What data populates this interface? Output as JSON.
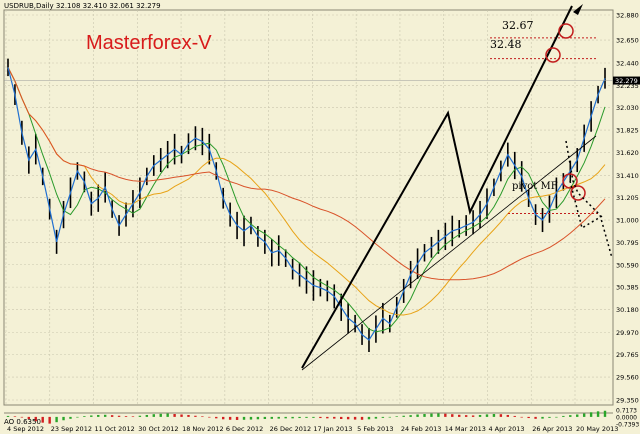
{
  "header": {
    "symbol_line": "USDRUB,Daily  32.108 32.410 32.061 32.279",
    "ao_line": "AO 0.6350"
  },
  "brand": "Masterforex-V",
  "annotations": {
    "target_high": "32.67",
    "target_low": "32.48",
    "pivot_label": "pivot MF"
  },
  "colors": {
    "background": "#f4f1d6",
    "grid": "#c9c6ae",
    "price_line": "#1f6fd1",
    "candles": "#000000",
    "ma_fast": "#2a9a2a",
    "ma_mid": "#e8a317",
    "ma_slow": "#d9532a",
    "brand": "#d81b1b",
    "target_line": "#c21d1d",
    "ao_up": "#2aa52a",
    "ao_down": "#d22020"
  },
  "chart_data": {
    "type": "line",
    "title": "USDRUB,Daily",
    "last_price": "32.279",
    "ylim": [
      29.35,
      32.88
    ],
    "y_ticks": [
      "32.880",
      "32.650",
      "32.440",
      "32.235",
      "32.030",
      "31.825",
      "31.620",
      "31.410",
      "31.205",
      "31.000",
      "30.795",
      "30.590",
      "30.385",
      "30.180",
      "29.970",
      "29.765",
      "29.560",
      "29.350"
    ],
    "x_ticks": [
      "4 Sep 2012",
      "23 Sep 2012",
      "11 Oct 2012",
      "30 Oct 2012",
      "18 Nov 2012",
      "6 Dec 2012",
      "26 Dec 2012",
      "17 Jan 2013",
      "5 Feb 2013",
      "24 Feb 2013",
      "14 Mar 2013",
      "4 Apr 2013",
      "26 Apr 2013",
      "20 May 2013"
    ],
    "ao_ticks": [
      "0.7173",
      "0.0000",
      "-0.7393"
    ],
    "ao_value": "0.6350",
    "price_series": [
      32.4,
      32.15,
      31.8,
      31.55,
      31.65,
      31.4,
      31.1,
      30.8,
      31.05,
      31.25,
      31.45,
      31.35,
      31.15,
      31.2,
      31.3,
      31.1,
      30.95,
      31.05,
      31.15,
      31.25,
      31.4,
      31.5,
      31.55,
      31.6,
      31.65,
      31.6,
      31.7,
      31.75,
      31.72,
      31.65,
      31.45,
      31.2,
      31.05,
      30.95,
      30.9,
      30.95,
      30.85,
      30.8,
      30.7,
      30.72,
      30.65,
      30.55,
      30.5,
      30.45,
      30.4,
      30.38,
      30.35,
      30.3,
      30.2,
      30.1,
      30.05,
      29.95,
      29.9,
      30.0,
      30.1,
      30.05,
      30.2,
      30.35,
      30.5,
      30.6,
      30.7,
      30.75,
      30.8,
      30.85,
      30.9,
      30.92,
      30.95,
      30.98,
      31.05,
      31.15,
      31.3,
      31.45,
      31.6,
      31.5,
      31.4,
      31.2,
      31.05,
      31.0,
      31.1,
      31.25,
      31.35,
      31.45,
      31.55,
      31.75,
      31.95,
      32.15,
      32.3
    ],
    "ao_values": [
      0.1,
      0.05,
      -0.05,
      -0.25,
      -0.45,
      -0.6,
      -0.7,
      -0.55,
      -0.35,
      -0.2,
      -0.05,
      0.08,
      0.15,
      0.2,
      0.22,
      0.18,
      0.12,
      0.08,
      0.05,
      0.12,
      0.2,
      0.28,
      0.32,
      0.35,
      0.3,
      0.25,
      0.2,
      0.12,
      0.05,
      -0.05,
      -0.15,
      -0.25,
      -0.3,
      -0.32,
      -0.3,
      -0.28,
      -0.25,
      -0.22,
      -0.2,
      -0.18,
      -0.15,
      -0.15,
      -0.12,
      -0.1,
      -0.1,
      -0.12,
      -0.15,
      -0.18,
      -0.22,
      -0.25,
      -0.28,
      -0.3,
      -0.25,
      -0.18,
      -0.1,
      -0.02,
      0.06,
      0.12,
      0.18,
      0.25,
      0.3,
      0.34,
      0.36,
      0.33,
      0.28,
      0.22,
      0.18,
      0.15,
      0.2,
      0.26,
      0.3,
      0.28,
      0.2,
      0.1,
      0.0,
      -0.12,
      -0.2,
      -0.18,
      -0.1,
      0.0,
      0.1,
      0.18,
      0.25,
      0.35,
      0.48,
      0.58,
      0.64
    ],
    "levels": {
      "target_high": 32.67,
      "target_low": 32.48,
      "pivot_mf": 31.06
    },
    "grid": true
  }
}
